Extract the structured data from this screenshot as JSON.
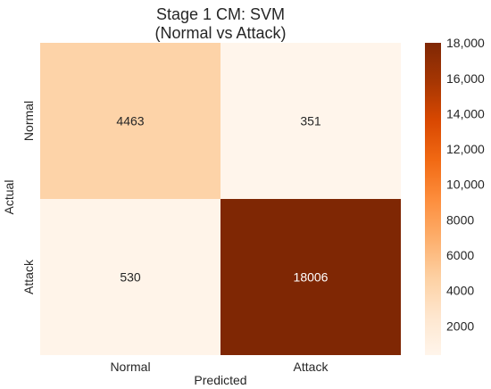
{
  "chart_data": {
    "type": "heatmap",
    "title_lines": [
      "Stage 1 CM: SVM",
      "(Normal vs Attack)"
    ],
    "xlabel": "Predicted",
    "ylabel": "Actual",
    "x_categories": [
      "Normal",
      "Attack"
    ],
    "y_categories": [
      "Normal",
      "Attack"
    ],
    "values": [
      [
        4463,
        351
      ],
      [
        530,
        18006
      ]
    ],
    "value_labels": [
      [
        "4463",
        "351"
      ],
      [
        "530",
        "18006"
      ]
    ],
    "colorbar": {
      "min": 351,
      "max": 18006,
      "ticks": [
        2000,
        4000,
        6000,
        8000,
        10000,
        12000,
        14000,
        16000,
        18000
      ],
      "tick_labels": [
        "2000",
        "4000",
        "6000",
        "8000",
        "10,000",
        "12,000",
        "14,000",
        "16,000",
        "18,000"
      ]
    },
    "colormap": "Oranges",
    "colors": {
      "low": "#fff5eb",
      "high": "#7f2704"
    }
  }
}
